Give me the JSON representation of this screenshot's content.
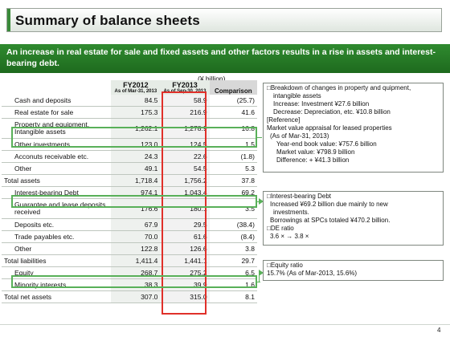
{
  "title": "Summary of balance sheets",
  "banner": "An increase in real estate for sale and fixed assets and other factors results in a rise in assets and interest-bearing debt.",
  "unit": "(¥ billion)",
  "header": {
    "fy2012": "FY2012",
    "fy2012_sub": "As of Mar-31, 2013",
    "fy2013": "FY2013",
    "fy2013_sub": "As of Sep-30, 2013",
    "comparison": "Comparison"
  },
  "rows": [
    {
      "label": "Cash and deposits",
      "fy2012": "84.5",
      "fy2013": "58.9",
      "cmp": "(25.7)"
    },
    {
      "label": "Real estate for sale",
      "fy2012": "175.3",
      "fy2013": "216.9",
      "cmp": "41.6"
    },
    {
      "label": "Property and equipment, Intangible assets",
      "fy2012": "1,262.1",
      "fy2013": "1,278.9",
      "cmp": "16.8"
    },
    {
      "label": "Other investments",
      "fy2012": "123.0",
      "fy2013": "124.5",
      "cmp": "1.5"
    },
    {
      "label": "Acconuts receivable etc.",
      "fy2012": "24.3",
      "fy2013": "22.6",
      "cmp": "(1.8)"
    },
    {
      "label": "Other",
      "fy2012": "49.1",
      "fy2013": "54.5",
      "cmp": "5.3"
    },
    {
      "label": "Total assets",
      "fy2012": "1,718.4",
      "fy2013": "1,756.2",
      "cmp": "37.8"
    },
    {
      "label": "Interest-bearing Debt",
      "fy2012": "974.1",
      "fy2013": "1,043.4",
      "cmp": "69.2"
    },
    {
      "label": "Guarantee and lease deposits received",
      "fy2012": "176.6",
      "fy2013": "180.1",
      "cmp": "3.5"
    },
    {
      "label": "Deposits etc.",
      "fy2012": "67.9",
      "fy2013": "29.5",
      "cmp": "(38.4)"
    },
    {
      "label": "Trade payables etc.",
      "fy2012": "70.0",
      "fy2013": "61.6",
      "cmp": "(8.4)"
    },
    {
      "label": "Other",
      "fy2012": "122.8",
      "fy2013": "126.6",
      "cmp": "3.8"
    },
    {
      "label": "Total liabilities",
      "fy2012": "1,411.4",
      "fy2013": "1,441.1",
      "cmp": "29.7"
    },
    {
      "label": "Equity",
      "fy2012": "268.7",
      "fy2013": "275.2",
      "cmp": "6.5"
    },
    {
      "label": "Minority interests",
      "fy2012": "38.3",
      "fy2013": "39.9",
      "cmp": "1.6"
    },
    {
      "label": "Total net assets",
      "fy2012": "307.0",
      "fy2013": "315.0",
      "cmp": "8.1"
    }
  ],
  "note1": [
    "□Breakdown of changes in property and quipment,",
    "intangible assets",
    "Increase: Investment ¥27.6 billion",
    "Decrease: Depreciation, etc. ¥10.8 billion",
    "[Reference]",
    "Market value appraisal for leased properties",
    "(As of Mar-31, 2013)",
    "Year-end book value: ¥757.6 billion",
    "Market value: ¥798.9 billion",
    "Difference: + ¥41.3 billion"
  ],
  "note2": [
    "□Interest-bearing Debt",
    "Increased ¥69.2 billion due mainly to new",
    "investments.",
    "Borrowings at SPCs totaled ¥470.2 billion.",
    "□DE ratio",
    "3.6 × → 3.8 ×"
  ],
  "note3": [
    "□Equity ratio",
    "15.7% (As of Mar-2013, 15.6%)"
  ],
  "page_number": "4",
  "colors": {
    "accent_green": "#2f8a2f",
    "highlight_green": "#59b059",
    "highlight_red": "#e0302a"
  }
}
